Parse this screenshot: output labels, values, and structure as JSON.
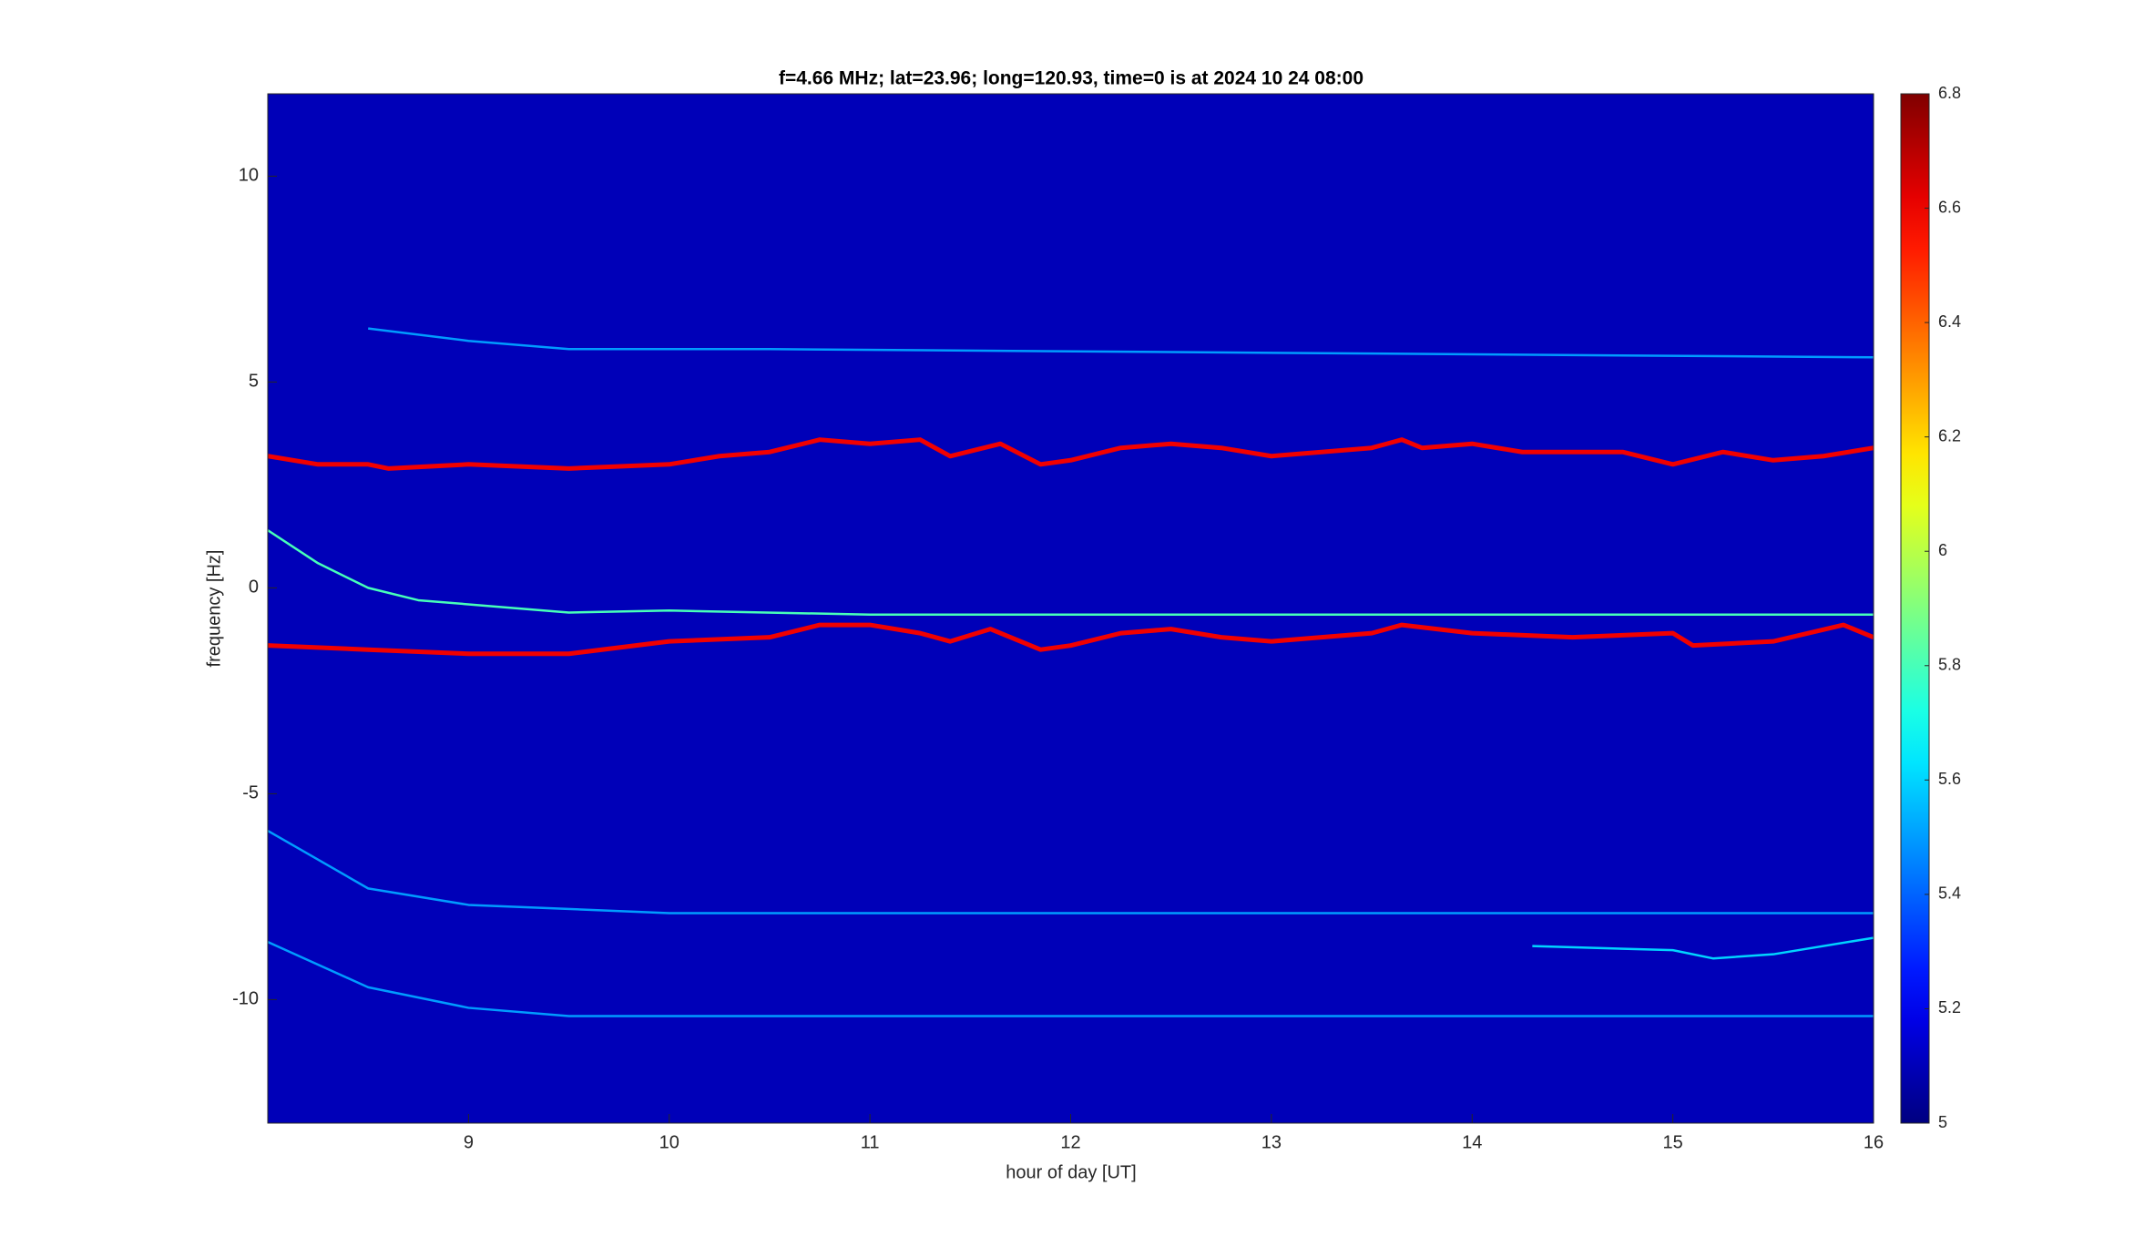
{
  "chart_data": {
    "type": "spectrogram",
    "title": "f=4.66 MHz;  lat=23.96; long=120.93, time=0 is at 2024 10 24 08:00",
    "xlabel": "hour of day [UT]",
    "ylabel": "frequency [Hz]",
    "xlim": [
      8,
      16
    ],
    "xticks": [
      9,
      10,
      11,
      12,
      13,
      14,
      15,
      16
    ],
    "ylim": [
      -13,
      12
    ],
    "yticks": [
      -10,
      -5,
      0,
      5,
      10
    ],
    "colormap": "jet",
    "clim": [
      5,
      6.8
    ],
    "cticks": [
      5,
      5.2,
      5.4,
      5.6,
      5.8,
      6,
      6.2,
      6.4,
      6.6,
      6.8
    ],
    "background_level": 5.1,
    "traces": [
      {
        "level": 6.6,
        "x": [
          8,
          8.25,
          8.5,
          8.6,
          9,
          9.5,
          10,
          10.25,
          10.5,
          10.75,
          11,
          11.25,
          11.4,
          11.65,
          11.85,
          12,
          12.25,
          12.5,
          12.75,
          13,
          13.25,
          13.5,
          13.65,
          13.75,
          14,
          14.25,
          14.5,
          14.75,
          15,
          15.25,
          15.5,
          15.75,
          16
        ],
        "y": [
          3.2,
          3.0,
          3.0,
          2.9,
          3.0,
          2.9,
          3.0,
          3.2,
          3.3,
          3.6,
          3.5,
          3.6,
          3.2,
          3.5,
          3.0,
          3.1,
          3.4,
          3.5,
          3.4,
          3.2,
          3.3,
          3.4,
          3.6,
          3.4,
          3.5,
          3.3,
          3.3,
          3.3,
          3.0,
          3.3,
          3.1,
          3.2,
          3.4
        ]
      },
      {
        "level": 6.6,
        "x": [
          8,
          8.5,
          9,
          9.5,
          10,
          10.5,
          10.75,
          11,
          11.25,
          11.4,
          11.6,
          11.85,
          12,
          12.25,
          12.5,
          12.75,
          13,
          13.25,
          13.5,
          13.65,
          14,
          14.5,
          15,
          15.1,
          15.5,
          15.85,
          16
        ],
        "y": [
          -1.4,
          -1.5,
          -1.6,
          -1.6,
          -1.3,
          -1.2,
          -0.9,
          -0.9,
          -1.1,
          -1.3,
          -1.0,
          -1.5,
          -1.4,
          -1.1,
          -1.0,
          -1.2,
          -1.3,
          -1.2,
          -1.1,
          -0.9,
          -1.1,
          -1.2,
          -1.1,
          -1.4,
          -1.3,
          -0.9,
          -1.2
        ]
      },
      {
        "level": 5.8,
        "x": [
          8,
          8.25,
          8.5,
          8.75,
          9.5,
          10,
          11,
          16
        ],
        "y": [
          1.4,
          0.6,
          0,
          -0.3,
          -0.6,
          -0.55,
          -0.65,
          -0.65
        ]
      },
      {
        "level": 5.5,
        "x": [
          8.5,
          9,
          9.5,
          10.5,
          16
        ],
        "y": [
          6.3,
          6.0,
          5.8,
          5.8,
          5.6
        ]
      },
      {
        "level": 5.5,
        "x": [
          8,
          8.5,
          9,
          10,
          16
        ],
        "y": [
          -5.9,
          -7.3,
          -7.7,
          -7.9,
          -7.9
        ]
      },
      {
        "level": 5.5,
        "x": [
          8,
          8.5,
          9,
          9.5,
          16
        ],
        "y": [
          -8.6,
          -9.7,
          -10.2,
          -10.4,
          -10.4
        ]
      },
      {
        "level": 5.6,
        "x": [
          14.3,
          15,
          15.2,
          15.5,
          16
        ],
        "y": [
          -8.7,
          -8.8,
          -9.0,
          -8.9,
          -8.5
        ]
      }
    ]
  }
}
